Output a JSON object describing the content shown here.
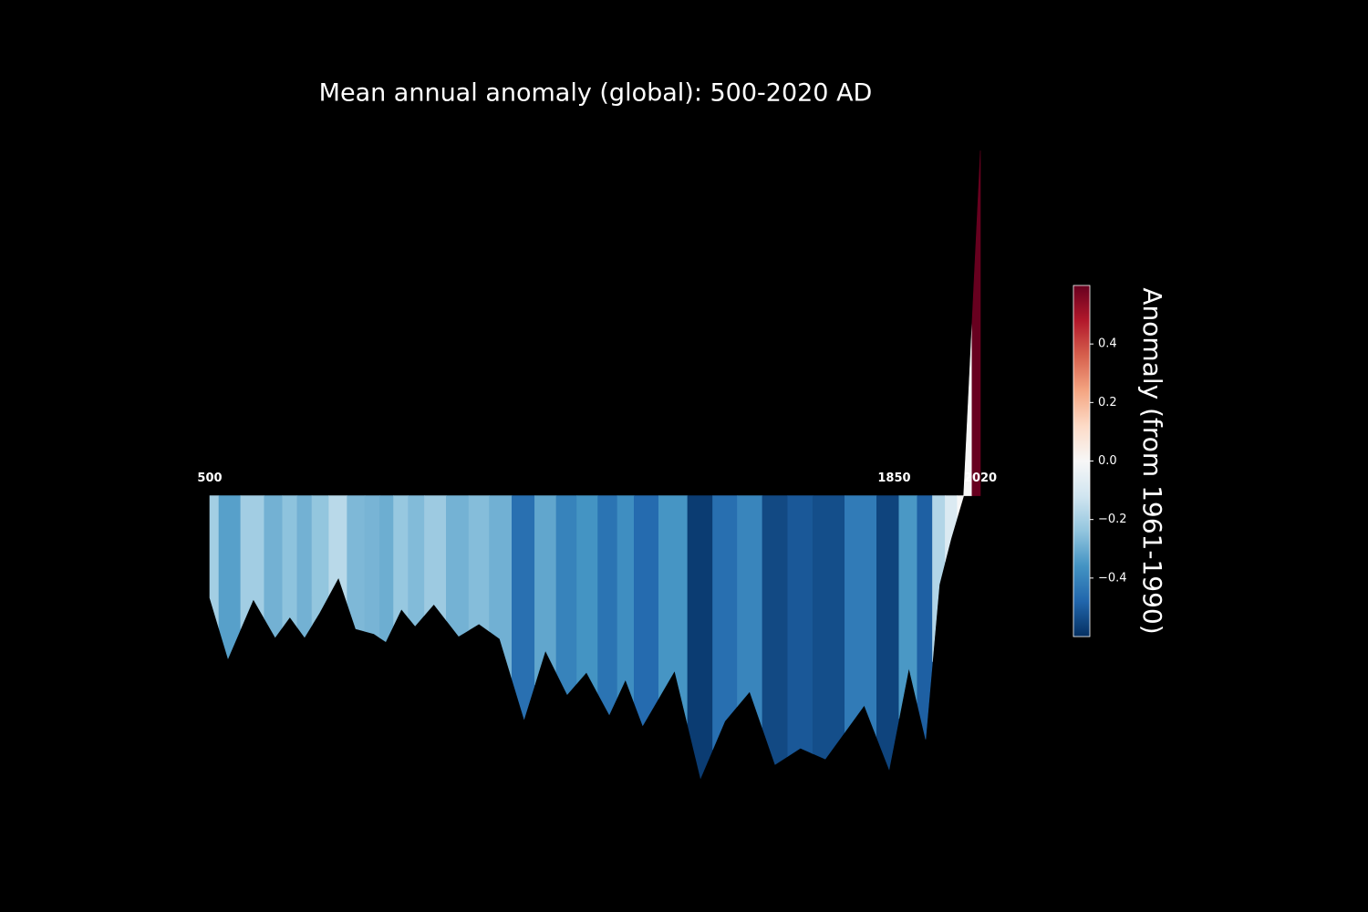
{
  "chart_data": {
    "type": "area",
    "title": "Mean annual anomaly (global): 500-2020 AD",
    "x": [
      500,
      536,
      586,
      629,
      658,
      687,
      716,
      754,
      788,
      824,
      847,
      878,
      905,
      942,
      991,
      1031,
      1072,
      1120,
      1162,
      1205,
      1243,
      1288,
      1320,
      1354,
      1417,
      1468,
      1516,
      1565,
      1615,
      1665,
      1714,
      1791,
      1840,
      1879,
      1912,
      1939,
      1962,
      1987,
      2020
    ],
    "values": [
      -0.207,
      -0.33,
      -0.21,
      -0.287,
      -0.246,
      -0.287,
      -0.238,
      -0.166,
      -0.27,
      -0.28,
      -0.296,
      -0.23,
      -0.264,
      -0.22,
      -0.285,
      -0.26,
      -0.29,
      -0.453,
      -0.314,
      -0.403,
      -0.358,
      -0.444,
      -0.373,
      -0.466,
      -0.355,
      -0.573,
      -0.457,
      -0.397,
      -0.545,
      -0.512,
      -0.534,
      -0.425,
      -0.555,
      -0.349,
      -0.494,
      -0.18,
      -0.087,
      0,
      0.7
    ],
    "xlim": [
      500,
      2020
    ],
    "xticks": [
      500,
      1850,
      2020
    ],
    "ylim": [
      -0.6,
      0.7
    ],
    "colormap": [
      "#053061",
      "#2166ac",
      "#4393c3",
      "#92c5de",
      "#d1e5f0",
      "#f7f7f7",
      "#fddbc7",
      "#f4a582",
      "#d6604d",
      "#b2182b",
      "#67001f"
    ],
    "clim": [
      -0.6,
      0.6
    ],
    "colorbar_label": "Anomaly (from 1961-1990)",
    "colorbar_ticks": [
      {
        "value": -0.4,
        "label": "−0.4"
      },
      {
        "value": -0.2,
        "label": "−0.2"
      },
      {
        "value": 0,
        "label": "0.0"
      },
      0.2,
      0.4
    ]
  }
}
